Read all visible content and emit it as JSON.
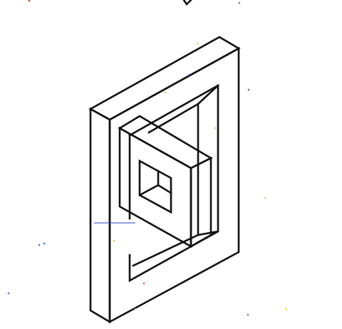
{
  "figure": {
    "description_icon": "isometric-frame-with-square-ring-icon",
    "colors": {
      "background": "#ffffff",
      "line": "#111111",
      "speck_blue": "#2244cc",
      "speck_yellow": "#d9c400",
      "speck_red": "#cc2222"
    }
  }
}
